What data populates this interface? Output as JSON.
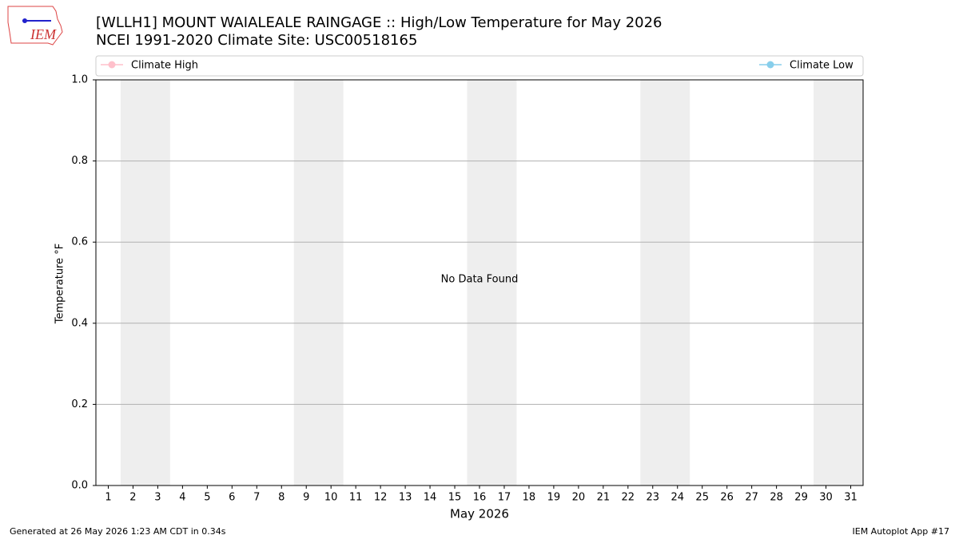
{
  "logo": "IEM",
  "chart_data": {
    "type": "line",
    "title": "[WLLH1] MOUNT WAIALEALE RAINGAGE :: High/Low Temperature for May 2026",
    "subtitle": "NCEI 1991-2020 Climate Site: USC00518165",
    "xlabel": "May 2026",
    "ylabel": "Temperature °F",
    "annotation": "No Data Found",
    "x": [],
    "series": [
      {
        "name": "Climate High",
        "color": "pink",
        "values": []
      },
      {
        "name": "Climate Low",
        "color": "skyblue",
        "values": []
      }
    ],
    "xlim": [
      0.5,
      31.5
    ],
    "xticks": [
      1,
      2,
      3,
      4,
      5,
      6,
      7,
      8,
      9,
      10,
      11,
      12,
      13,
      14,
      15,
      16,
      17,
      18,
      19,
      20,
      21,
      22,
      23,
      24,
      25,
      26,
      27,
      28,
      29,
      30,
      31
    ],
    "ylim": [
      0,
      1
    ],
    "yticks": [
      {
        "value": 0,
        "label": "0.0"
      },
      0.2,
      0.4,
      0.6,
      0.8,
      {
        "value": 1,
        "label": "1.0"
      }
    ],
    "grid": true,
    "shaded_spans": [
      [
        1.5,
        3.5
      ],
      [
        8.5,
        10.5
      ],
      [
        15.5,
        17.5
      ],
      [
        22.5,
        24.5
      ],
      [
        29.5,
        31.5
      ]
    ],
    "shade_color": "#eeeeee",
    "footer_left": "Generated at 26 May 2026 1:23 AM CDT in 0.34s",
    "footer_right": "IEM Autoplot App #17"
  }
}
